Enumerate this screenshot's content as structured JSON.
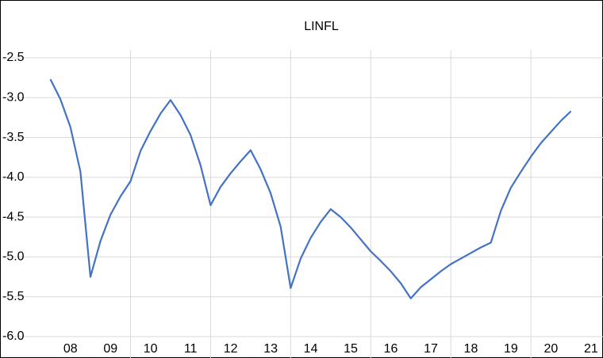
{
  "chart_data": {
    "type": "line",
    "title": "LINFL",
    "x": [
      8,
      8.25,
      8.5,
      8.75,
      9,
      9.25,
      9.5,
      9.75,
      10,
      10.25,
      10.5,
      10.75,
      11,
      11.25,
      11.5,
      11.75,
      12,
      12.25,
      12.5,
      12.75,
      13,
      13.25,
      13.5,
      13.75,
      14,
      14.25,
      14.5,
      14.75,
      15,
      15.25,
      15.5,
      15.75,
      16,
      16.25,
      16.5,
      16.75,
      17,
      17.25,
      17.5,
      17.75,
      18,
      18.25,
      18.5,
      18.75,
      19,
      19.25,
      19.5,
      19.75,
      20,
      20.25,
      20.5,
      20.75,
      21
    ],
    "series": [
      {
        "name": "LINFL",
        "color": "#4472c4",
        "values": [
          -2.77,
          -3.02,
          -3.37,
          -3.93,
          -5.25,
          -4.8,
          -4.47,
          -4.24,
          -4.05,
          -3.67,
          -3.42,
          -3.2,
          -3.03,
          -3.22,
          -3.47,
          -3.85,
          -4.35,
          -4.12,
          -3.95,
          -3.8,
          -3.66,
          -3.9,
          -4.2,
          -4.62,
          -5.39,
          -5.02,
          -4.76,
          -4.56,
          -4.4,
          -4.5,
          -4.63,
          -4.78,
          -4.93,
          -5.05,
          -5.18,
          -5.33,
          -5.52,
          -5.38,
          -5.28,
          -5.18,
          -5.09,
          -5.02,
          -4.95,
          -4.88,
          -4.82,
          -4.42,
          -4.13,
          -3.93,
          -3.74,
          -3.57,
          -3.43,
          -3.29,
          -3.17
        ]
      }
    ],
    "xlim": [
      6.9,
      21.8
    ],
    "xticks": [
      {
        "value": 8.5,
        "label": "08"
      },
      {
        "value": 9.5,
        "label": "09"
      },
      {
        "value": 10.5,
        "label": "10"
      },
      {
        "value": 11.5,
        "label": "11"
      },
      {
        "value": 12.5,
        "label": "12"
      },
      {
        "value": 13.5,
        "label": "13"
      },
      {
        "value": 14.5,
        "label": "14"
      },
      {
        "value": 15.5,
        "label": "15"
      },
      {
        "value": 16.5,
        "label": "16"
      },
      {
        "value": 17.5,
        "label": "17"
      },
      {
        "value": 18.5,
        "label": "18"
      },
      {
        "value": 19.5,
        "label": "19"
      },
      {
        "value": 20.5,
        "label": "20"
      },
      {
        "value": 21.5,
        "label": "21"
      }
    ],
    "xgrid": [
      10,
      12,
      14,
      16,
      18,
      20
    ],
    "ylim": [
      -6,
      -2.5
    ],
    "yticks": [
      -2.5,
      {
        "value": -3,
        "label": "-3.0"
      },
      -3.5,
      {
        "value": -4,
        "label": "-4.0"
      },
      -4.5,
      {
        "value": -5,
        "label": "-5.0"
      },
      -5.5,
      {
        "value": -6,
        "label": "-6.0"
      }
    ],
    "grid": true
  }
}
